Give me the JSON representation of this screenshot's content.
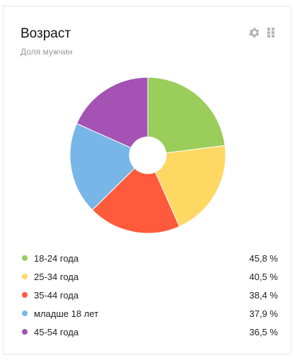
{
  "widget": {
    "title": "Возраст",
    "subtitle": "Доля мужчин",
    "icons": {
      "settings": "gear-icon",
      "drag": "drag-handle-icon"
    }
  },
  "colors": {
    "border": "#e6e6e6",
    "icon": "#b5b5b5"
  },
  "chart_data": {
    "type": "pie",
    "variant": "donut",
    "start_angle_deg": 0,
    "direction": "clockwise",
    "slices": [
      {
        "label": "18-24 года",
        "value": 45.8,
        "value_label": "45,8 %",
        "color": "#9acd5a"
      },
      {
        "label": "25-34 года",
        "value": 40.5,
        "value_label": "40,5 %",
        "color": "#ffd863"
      },
      {
        "label": "35-44 года",
        "value": 38.4,
        "value_label": "38,4 %",
        "color": "#ff5a3c"
      },
      {
        "label": "младше 18 лет",
        "value": 37.9,
        "value_label": "37,9 %",
        "color": "#78b6e8"
      },
      {
        "label": "45-54 года",
        "value": 36.5,
        "value_label": "36,5 %",
        "color": "#a453b4"
      }
    ]
  }
}
